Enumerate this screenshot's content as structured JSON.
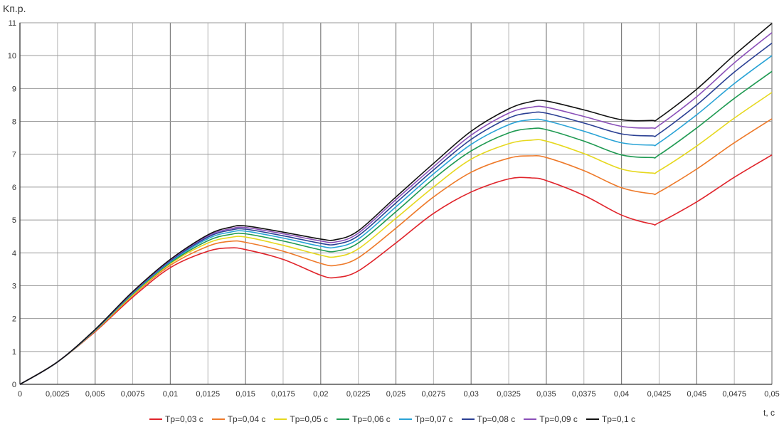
{
  "chart_data": {
    "type": "line",
    "ylabel": "Kп.р.",
    "xlabel": "t, c",
    "xlim": [
      0,
      0.05
    ],
    "ylim": [
      0,
      11
    ],
    "grid": true,
    "legend_position": "bottom",
    "x_ticks": [
      "0",
      "0,0025",
      "0,005",
      "0,0075",
      "0,01",
      "0,0125",
      "0,015",
      "0,0175",
      "0,02",
      "0,0225",
      "0,025",
      "0,0275",
      "0,03",
      "0,0325",
      "0,035",
      "0,0375",
      "0,04",
      "0,0425",
      "0,045",
      "0,0475",
      "0,05"
    ],
    "y_ticks": [
      "0",
      "1",
      "2",
      "3",
      "4",
      "5",
      "6",
      "7",
      "8",
      "9",
      "10",
      "11"
    ],
    "x": [
      0,
      0.0025,
      0.005,
      0.0075,
      0.01,
      0.0125,
      0.014,
      0.015,
      0.0175,
      0.02,
      0.021,
      0.0225,
      0.025,
      0.0275,
      0.03,
      0.0325,
      0.034,
      0.035,
      0.0375,
      0.04,
      0.042,
      0.0425,
      0.045,
      0.0475,
      0.05
    ],
    "series": [
      {
        "name": "Tр=0,03 с",
        "color": "#e0242b",
        "values": [
          0,
          0.68,
          1.6,
          2.65,
          3.55,
          4.05,
          4.15,
          4.1,
          3.8,
          3.32,
          3.25,
          3.45,
          4.3,
          5.2,
          5.85,
          6.25,
          6.28,
          6.2,
          5.75,
          5.15,
          4.88,
          4.92,
          5.55,
          6.3,
          6.98
        ]
      },
      {
        "name": "Tр=0,04 с",
        "color": "#ee7a2a",
        "values": [
          0,
          0.68,
          1.62,
          2.7,
          3.62,
          4.2,
          4.35,
          4.32,
          4.05,
          3.68,
          3.62,
          3.85,
          4.75,
          5.7,
          6.45,
          6.88,
          6.95,
          6.9,
          6.5,
          5.98,
          5.8,
          5.85,
          6.55,
          7.35,
          8.08
        ]
      },
      {
        "name": "Tр=0,05 с",
        "color": "#e6d81e",
        "values": [
          0,
          0.68,
          1.63,
          2.72,
          3.67,
          4.3,
          4.47,
          4.48,
          4.23,
          3.93,
          3.88,
          4.12,
          5.05,
          6.0,
          6.85,
          7.32,
          7.43,
          7.4,
          7.02,
          6.55,
          6.43,
          6.5,
          7.25,
          8.1,
          8.88
        ]
      },
      {
        "name": "Tр=0,06 с",
        "color": "#1f9a52",
        "values": [
          0,
          0.68,
          1.64,
          2.75,
          3.7,
          4.37,
          4.56,
          4.58,
          4.36,
          4.09,
          4.05,
          4.3,
          5.25,
          6.25,
          7.1,
          7.65,
          7.78,
          7.75,
          7.4,
          6.98,
          6.9,
          6.98,
          7.8,
          8.7,
          9.52
        ]
      },
      {
        "name": "Tр=0,07 с",
        "color": "#29a3d6",
        "values": [
          0,
          0.68,
          1.65,
          2.77,
          3.73,
          4.43,
          4.63,
          4.66,
          4.45,
          4.2,
          4.17,
          4.42,
          5.4,
          6.4,
          7.3,
          7.9,
          8.05,
          8.02,
          7.7,
          7.35,
          7.28,
          7.35,
          8.2,
          9.15,
          10.0
        ]
      },
      {
        "name": "Tр=0,08 с",
        "color": "#2a3f93",
        "values": [
          0,
          0.68,
          1.66,
          2.79,
          3.76,
          4.48,
          4.69,
          4.72,
          4.52,
          4.29,
          4.26,
          4.52,
          5.52,
          6.52,
          7.45,
          8.1,
          8.26,
          8.25,
          7.95,
          7.62,
          7.56,
          7.63,
          8.5,
          9.5,
          10.38
        ]
      },
      {
        "name": "Tр=0,09 с",
        "color": "#8a4fb8",
        "values": [
          0,
          0.68,
          1.66,
          2.8,
          3.78,
          4.52,
          4.73,
          4.77,
          4.58,
          4.36,
          4.33,
          4.6,
          5.62,
          6.62,
          7.58,
          8.25,
          8.43,
          8.43,
          8.15,
          7.85,
          7.8,
          7.88,
          8.75,
          9.78,
          10.7
        ]
      },
      {
        "name": "Tр=0,1 с",
        "color": "#111111",
        "values": [
          0,
          0.68,
          1.67,
          2.82,
          3.8,
          4.55,
          4.78,
          4.82,
          4.63,
          4.42,
          4.4,
          4.67,
          5.7,
          6.72,
          7.7,
          8.38,
          8.6,
          8.62,
          8.35,
          8.05,
          8.03,
          8.1,
          8.98,
          10.02,
          10.98
        ]
      }
    ]
  }
}
